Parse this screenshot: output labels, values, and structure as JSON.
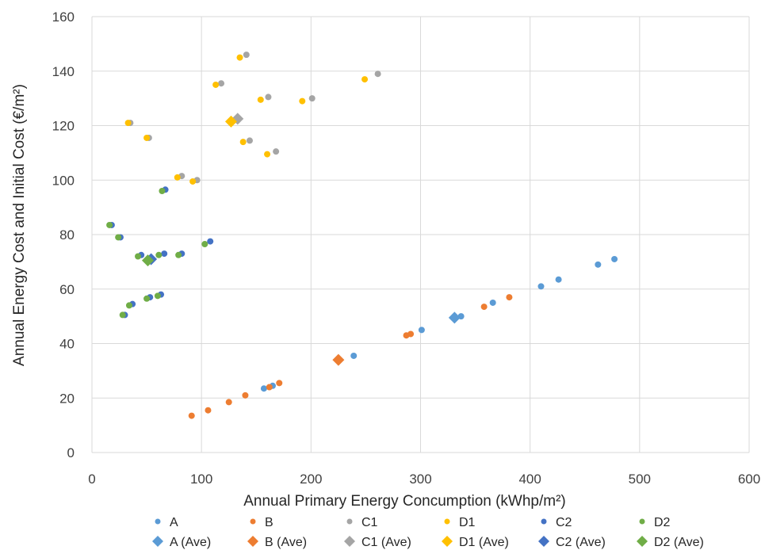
{
  "chart_data": {
    "type": "scatter",
    "title": "",
    "xlabel": "Annual Primary Energy Concumption (kWhp/m²)",
    "ylabel": "Annual Energy Cost and Initial Cost (€/m²)",
    "xlim": [
      0,
      600
    ],
    "ylim": [
      0,
      160
    ],
    "xticks": [
      0,
      100,
      200,
      300,
      400,
      500,
      600
    ],
    "yticks": [
      0,
      20,
      40,
      60,
      80,
      100,
      120,
      140,
      160
    ],
    "grid": true,
    "legend_position": "bottom",
    "series": [
      {
        "name": "A",
        "marker": "circle",
        "color": "#5b9bd5",
        "points": [
          [
            157,
            23.5
          ],
          [
            165,
            24.5
          ],
          [
            239,
            35.5
          ],
          [
            301,
            45
          ],
          [
            337,
            50
          ],
          [
            366,
            55
          ],
          [
            410,
            61
          ],
          [
            426,
            63.5
          ],
          [
            462,
            69
          ],
          [
            477,
            71
          ]
        ]
      },
      {
        "name": "B",
        "marker": "circle",
        "color": "#ed7d31",
        "points": [
          [
            91,
            13.5
          ],
          [
            106,
            15.5
          ],
          [
            125,
            18.5
          ],
          [
            140,
            21
          ],
          [
            162,
            24
          ],
          [
            171,
            25.5
          ],
          [
            287,
            43
          ],
          [
            291,
            43.5
          ],
          [
            358,
            53.5
          ],
          [
            381,
            57
          ]
        ]
      },
      {
        "name": "C1",
        "marker": "circle",
        "color": "#a5a5a5",
        "points": [
          [
            35,
            121
          ],
          [
            52,
            115.5
          ],
          [
            82,
            101.5
          ],
          [
            96,
            100
          ],
          [
            118,
            135.5
          ],
          [
            141,
            146
          ],
          [
            144,
            114.5
          ],
          [
            161,
            130.5
          ],
          [
            168,
            110.5
          ],
          [
            201,
            130
          ],
          [
            261,
            139
          ]
        ]
      },
      {
        "name": "D1",
        "marker": "circle",
        "color": "#ffc000",
        "points": [
          [
            33,
            121
          ],
          [
            50,
            115.5
          ],
          [
            78,
            101
          ],
          [
            92,
            99.5
          ],
          [
            113,
            135
          ],
          [
            135,
            145
          ],
          [
            138,
            114
          ],
          [
            154,
            129.5
          ],
          [
            160,
            109.5
          ],
          [
            192,
            129
          ],
          [
            249,
            137
          ]
        ]
      },
      {
        "name": "C2",
        "marker": "circle",
        "color": "#4472c4",
        "points": [
          [
            18,
            83.5
          ],
          [
            26,
            79
          ],
          [
            30,
            50.5
          ],
          [
            37,
            54.5
          ],
          [
            45,
            72.5
          ],
          [
            53,
            57
          ],
          [
            63,
            58
          ],
          [
            66,
            73
          ],
          [
            67,
            96.5
          ],
          [
            82,
            73
          ],
          [
            108,
            77.5
          ]
        ]
      },
      {
        "name": "D2",
        "marker": "circle",
        "color": "#70ad47",
        "points": [
          [
            16,
            83.5
          ],
          [
            24,
            79
          ],
          [
            28,
            50.5
          ],
          [
            34,
            54
          ],
          [
            42,
            72
          ],
          [
            50,
            56.5
          ],
          [
            60,
            57.5
          ],
          [
            61,
            72.5
          ],
          [
            64,
            96
          ],
          [
            79,
            72.5
          ],
          [
            103,
            76.5
          ]
        ]
      },
      {
        "name": "A (Ave)",
        "marker": "diamond",
        "color": "#5b9bd5",
        "points": [
          [
            331,
            49.5
          ]
        ]
      },
      {
        "name": "B (Ave)",
        "marker": "diamond",
        "color": "#ed7d31",
        "points": [
          [
            225,
            34
          ]
        ]
      },
      {
        "name": "C1 (Ave)",
        "marker": "diamond",
        "color": "#a5a5a5",
        "points": [
          [
            133,
            122.5
          ]
        ]
      },
      {
        "name": "D1 (Ave)",
        "marker": "diamond",
        "color": "#ffc000",
        "points": [
          [
            127,
            121.5
          ]
        ]
      },
      {
        "name": "C2 (Ave)",
        "marker": "diamond",
        "color": "#4472c4",
        "points": [
          [
            54,
            71
          ]
        ]
      },
      {
        "name": "D2 (Ave)",
        "marker": "diamond",
        "color": "#70ad47",
        "points": [
          [
            51,
            70.5
          ]
        ]
      }
    ]
  }
}
